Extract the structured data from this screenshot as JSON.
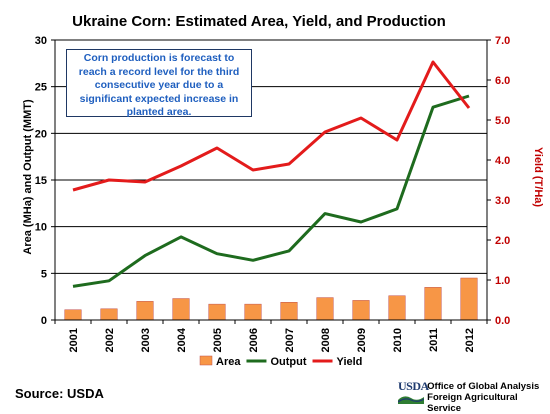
{
  "chart_data": {
    "type": "bar",
    "title": "Ukraine Corn:  Estimated Area, Yield, and Production",
    "categories": [
      "2001",
      "2002",
      "2003",
      "2004",
      "2005",
      "2006",
      "2007",
      "2008",
      "2009",
      "2010",
      "2011",
      "2012"
    ],
    "ylabel": "Area (MHa) and Output (MMT)",
    "ylabel_right": "Yield (T/Ha)",
    "ylim": [
      0,
      30
    ],
    "ylim_right": [
      0,
      7
    ],
    "yticks": [
      "0",
      "5",
      "10",
      "15",
      "20",
      "25",
      "30"
    ],
    "yticks_right": [
      "0.0",
      "1.0",
      "2.0",
      "3.0",
      "4.0",
      "5.0",
      "6.0",
      "7.0"
    ],
    "grid": true,
    "legend_position": "bottom",
    "series": [
      {
        "name": "Area",
        "type": "bar",
        "axis": "left",
        "color": "#f79646",
        "values": [
          1.1,
          1.2,
          2.0,
          2.3,
          1.7,
          1.7,
          1.9,
          2.4,
          2.1,
          2.6,
          3.5,
          4.5
        ]
      },
      {
        "name": "Output",
        "type": "line",
        "axis": "left",
        "color": "#1e6b1e",
        "values": [
          3.6,
          4.2,
          6.9,
          8.9,
          7.1,
          6.4,
          7.4,
          11.4,
          10.5,
          11.9,
          22.8,
          24.0
        ]
      },
      {
        "name": "Yield",
        "type": "line",
        "axis": "right",
        "color": "#e31b1b",
        "values": [
          3.25,
          3.5,
          3.45,
          3.85,
          4.3,
          3.75,
          3.9,
          4.7,
          5.05,
          4.5,
          6.45,
          5.3
        ]
      }
    ],
    "annotation": "Corn production is forecast to reach a record level for the third consecutive year due to a significant expected increase in planted area."
  },
  "footer": {
    "source": "Source:  USDA",
    "logo_word": "USDA",
    "agency_line1": "Office of Global Analysis",
    "agency_line2": "Foreign Agricultural Service"
  }
}
